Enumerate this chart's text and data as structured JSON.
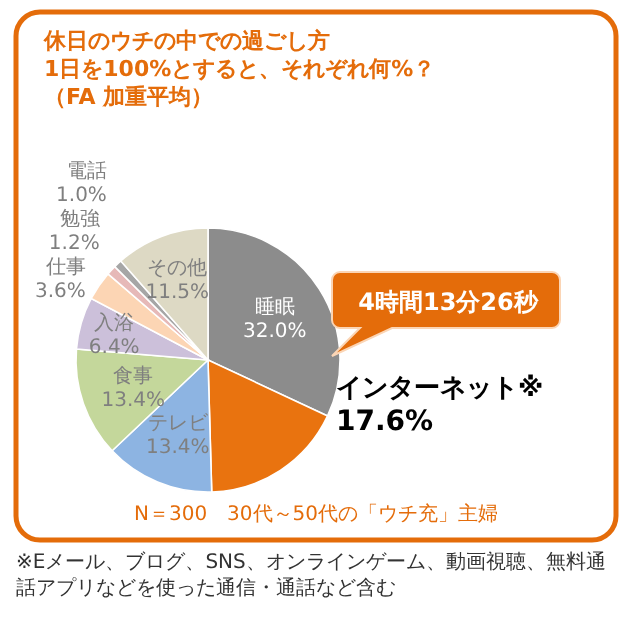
{
  "chart_data": {
    "type": "pie",
    "title": "休日のウチの中での過ごし方",
    "subtitle": "1日を100%とすると、それぞれ何%？",
    "categories": [
      "睡眠",
      "インターネット※",
      "テレビ",
      "食事",
      "入浴",
      "仕事",
      "勉強",
      "電話",
      "その他"
    ],
    "values": [
      32.0,
      17.6,
      13.4,
      13.4,
      6.4,
      3.6,
      1.2,
      1.0,
      11.5
    ],
    "colors": [
      "#8c8c8c",
      "#e9730f",
      "#8db4e2",
      "#c4d79b",
      "#ccc0da",
      "#fcd5b4",
      "#e6b9b8",
      "#a6a6a6",
      "#ddd9c4"
    ],
    "value_labels": [
      "32.0%",
      "17.6%",
      "13.4%",
      "13.4%",
      "6.4%",
      "3.6%",
      "1.2%",
      "1.0%",
      "11.5%"
    ],
    "annotations": [
      "（FA 加重平均）",
      "4時間13分26秒",
      "N＝300　30代～50代の「ウチ充」主婦",
      "※Eメール、ブログ、SNS、オンラインゲーム、動画視聴、無料通話アプリなどを使った通信・通話など含む"
    ]
  }
}
